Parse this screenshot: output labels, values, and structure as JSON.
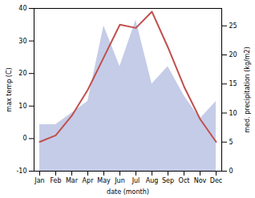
{
  "chart_data": {
    "type": "line",
    "categories": [
      "Jan",
      "Feb",
      "Mar",
      "Apr",
      "May",
      "Jun",
      "Jul",
      "Aug",
      "Sep",
      "Oct",
      "Nov",
      "Dec"
    ],
    "series": [
      {
        "type": "area",
        "color": "#c5cce8",
        "axis": "y2",
        "values": [
          8,
          8,
          10,
          12,
          25,
          18,
          26,
          15,
          18,
          13,
          9,
          12
        ]
      },
      {
        "type": "line",
        "color": "#c0504d",
        "values": [
          -1,
          1,
          7,
          15,
          25,
          35,
          34,
          39,
          28,
          16,
          6,
          -1
        ]
      }
    ],
    "xlabel": "date (month)",
    "ylabel": "max temp (C)",
    "y2label": "med. precipitation (kg/m2)",
    "ylim": [
      -10,
      40
    ],
    "yticks": [
      -10,
      0,
      10,
      20,
      30,
      40
    ],
    "y2lim": [
      0,
      28
    ],
    "y2ticks": [
      0,
      5,
      10,
      15,
      20,
      25
    ]
  }
}
